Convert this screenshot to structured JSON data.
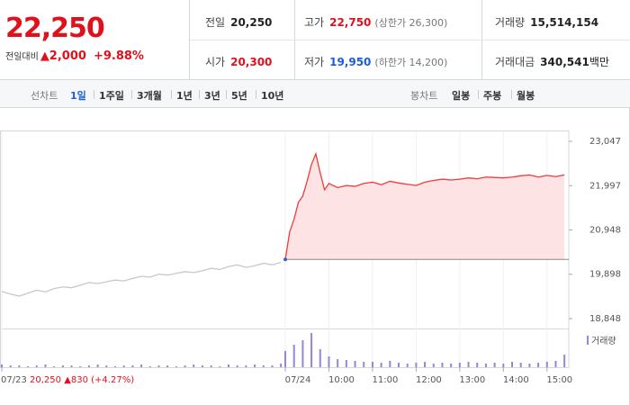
{
  "quote": {
    "price": "22,250",
    "change_label": "전일대비",
    "change": "▲2,000",
    "change_pct": "+9.88%"
  },
  "stats": [
    {
      "label": "전일",
      "value": "20,250"
    },
    {
      "label": "고가",
      "value": "22,750",
      "note": "(상한가 26,300)"
    },
    {
      "label": "거래량",
      "value": "15,514,154"
    },
    {
      "label": "시가",
      "value": "20,300"
    },
    {
      "label": "저가",
      "value": "19,950",
      "note": "(하한가 14,200)"
    },
    {
      "label": "거래대금",
      "value": "340,541",
      "unit": "백만"
    }
  ],
  "tabs": {
    "line_label": "선차트",
    "line": [
      "1일",
      "1주일",
      "3개월",
      "1년",
      "3년",
      "5년",
      "10년"
    ],
    "candle_label": "봉차트",
    "candle": [
      "일봉",
      "주봉",
      "월봉"
    ]
  },
  "chart_data": {
    "type": "line",
    "xlim": [
      0,
      130
    ],
    "xticks": [
      {
        "value": 0,
        "label": "07/23"
      },
      {
        "value": 65,
        "label": "07/24"
      },
      {
        "value": 75,
        "label": "10:00"
      },
      {
        "value": 85,
        "label": "11:00"
      },
      {
        "value": 95,
        "label": "12:00"
      },
      {
        "value": 105,
        "label": "13:00"
      },
      {
        "value": 115,
        "label": "14:00"
      },
      {
        "value": 125,
        "label": "15:00"
      }
    ],
    "ylim": [
      18848,
      23047
    ],
    "yticks": [
      {
        "value": 18848,
        "label": "18,848"
      },
      {
        "value": 19898,
        "label": "19,898"
      },
      {
        "value": 20948,
        "label": "20,948"
      },
      {
        "value": 21997,
        "label": "21,997"
      },
      {
        "value": 23047,
        "label": "23,047"
      }
    ],
    "baseline": 20250,
    "series": [
      {
        "color": "#c8c8c8",
        "x": [
          0,
          2,
          4,
          6,
          8,
          10,
          12,
          14,
          16,
          18,
          20,
          22,
          24,
          26,
          28,
          30,
          32,
          34,
          36,
          38,
          40,
          42,
          44,
          46,
          48,
          50,
          52,
          54,
          56,
          58,
          60,
          62,
          64
        ],
        "values": [
          19490,
          19430,
          19380,
          19450,
          19520,
          19480,
          19560,
          19600,
          19580,
          19640,
          19700,
          19680,
          19720,
          19760,
          19740,
          19800,
          19850,
          19830,
          19900,
          19880,
          19920,
          19960,
          19940,
          19980,
          20040,
          20010,
          20080,
          20120,
          20060,
          20100,
          20160,
          20120,
          20180
        ]
      },
      {
        "color": "#ef3b3b",
        "fill": "#fde3e4",
        "x": [
          65,
          66,
          67,
          68,
          69,
          70,
          71,
          72,
          73,
          74,
          75,
          77,
          79,
          81,
          83,
          85,
          87,
          89,
          91,
          93,
          95,
          97,
          99,
          101,
          103,
          105,
          107,
          109,
          111,
          113,
          115,
          117,
          119,
          121,
          123,
          125,
          127,
          129
        ],
        "values": [
          20250,
          20900,
          21200,
          21600,
          21750,
          22100,
          22500,
          22750,
          22300,
          21900,
          22050,
          21950,
          22000,
          21980,
          22050,
          22080,
          22020,
          22100,
          22060,
          22030,
          22000,
          22080,
          22120,
          22150,
          22130,
          22150,
          22180,
          22160,
          22200,
          22190,
          22180,
          22200,
          22230,
          22250,
          22200,
          22240,
          22210,
          22250
        ]
      }
    ],
    "volume": {
      "label": "거래량",
      "color": "#9486d8",
      "x": [
        0,
        2,
        4,
        6,
        8,
        10,
        12,
        14,
        16,
        18,
        20,
        22,
        24,
        26,
        28,
        30,
        32,
        34,
        36,
        38,
        40,
        42,
        44,
        46,
        48,
        50,
        52,
        54,
        56,
        58,
        60,
        62,
        64,
        65,
        67,
        69,
        71,
        73,
        75,
        77,
        79,
        81,
        83,
        85,
        87,
        89,
        91,
        93,
        95,
        97,
        99,
        101,
        103,
        105,
        107,
        109,
        111,
        113,
        115,
        117,
        119,
        121,
        123,
        125,
        127,
        129
      ],
      "values": [
        3,
        2,
        2,
        1,
        2,
        3,
        1,
        2,
        2,
        1,
        2,
        3,
        2,
        1,
        2,
        2,
        3,
        1,
        2,
        2,
        1,
        2,
        3,
        2,
        2,
        1,
        3,
        2,
        2,
        3,
        2,
        2,
        4,
        18,
        25,
        30,
        38,
        20,
        12,
        9,
        8,
        7,
        6,
        6,
        5,
        7,
        5,
        4,
        5,
        6,
        4,
        5,
        4,
        5,
        6,
        5,
        4,
        5,
        4,
        6,
        5,
        4,
        5,
        6,
        7,
        14
      ]
    },
    "hover": {
      "date": "07/23",
      "price": "20,250",
      "change": "▲830",
      "pct": "(+4.27%)"
    }
  }
}
